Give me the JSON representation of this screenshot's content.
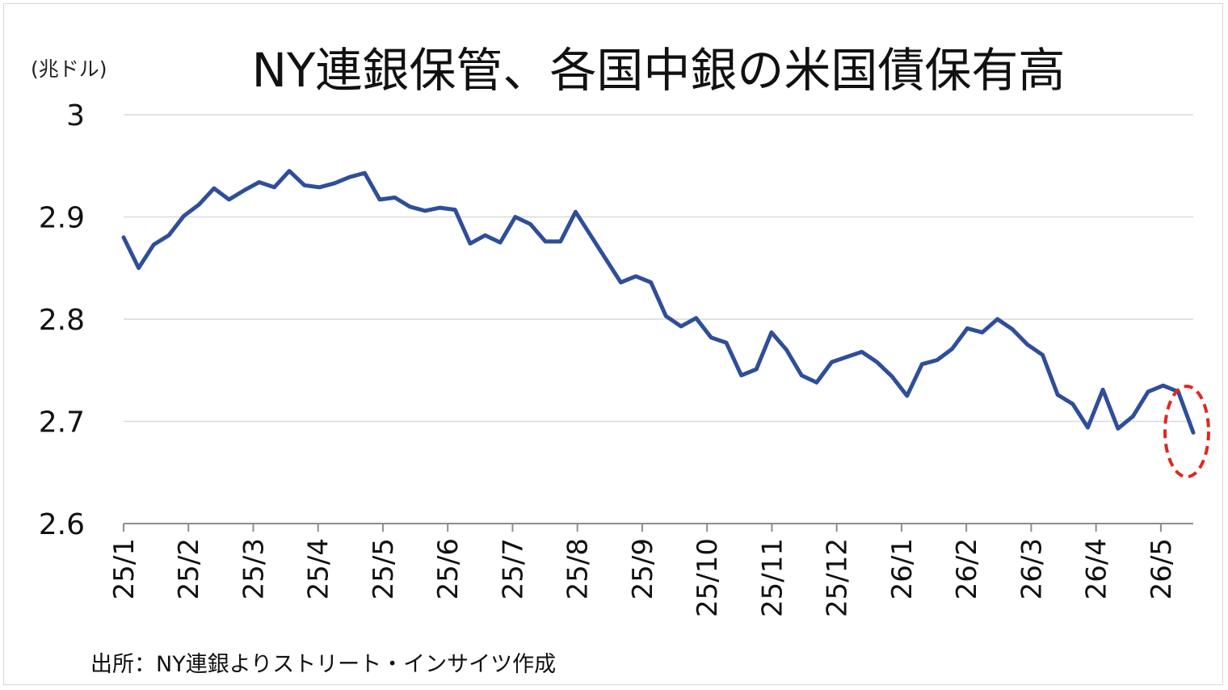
{
  "chart_data": {
    "type": "line",
    "title": "NY連銀保管、各国中銀の米国債保有高",
    "unit_label": "(兆ドル)",
    "source": "出所：NY連銀よりストリート・インサイツ作成",
    "ylim": [
      2.6,
      3.0
    ],
    "y_ticks": [
      "2.6",
      "2.7",
      "2.8",
      "2.9",
      "3"
    ],
    "y_tick_values": [
      2.6,
      2.7,
      2.8,
      2.9,
      3.0
    ],
    "x_ticks": [
      "25/1",
      "25/2",
      "25/3",
      "25/4",
      "25/5",
      "25/6",
      "25/7",
      "25/8",
      "25/9",
      "25/10",
      "25/11",
      "25/12",
      "26/1",
      "26/2",
      "26/3",
      "26/4",
      "26/5"
    ],
    "grid": "horizontal",
    "line_color": "#2f4e9a",
    "highlight_color": "#e0281e",
    "series": [
      {
        "values": [
          2.88,
          2.85,
          2.873,
          2.882,
          2.901,
          2.912,
          2.928,
          2.917,
          2.926,
          2.934,
          2.929,
          2.945,
          2.931,
          2.929,
          2.933,
          2.939,
          2.943,
          2.917,
          2.919,
          2.91,
          2.906,
          2.909,
          2.907,
          2.874,
          2.882,
          2.875,
          2.9,
          2.893,
          2.876,
          2.876,
          2.905,
          2.882,
          2.859,
          2.836,
          2.842,
          2.836,
          2.803,
          2.793,
          2.801,
          2.782,
          2.777,
          2.745,
          2.751,
          2.787,
          2.77,
          2.745,
          2.738,
          2.758,
          2.763,
          2.768,
          2.758,
          2.744,
          2.725,
          2.756,
          2.76,
          2.771,
          2.791,
          2.787,
          2.8,
          2.79,
          2.775,
          2.765,
          2.726,
          2.717,
          2.694,
          2.731,
          2.693,
          2.705,
          2.729,
          2.735,
          2.729,
          2.689
        ]
      }
    ]
  }
}
